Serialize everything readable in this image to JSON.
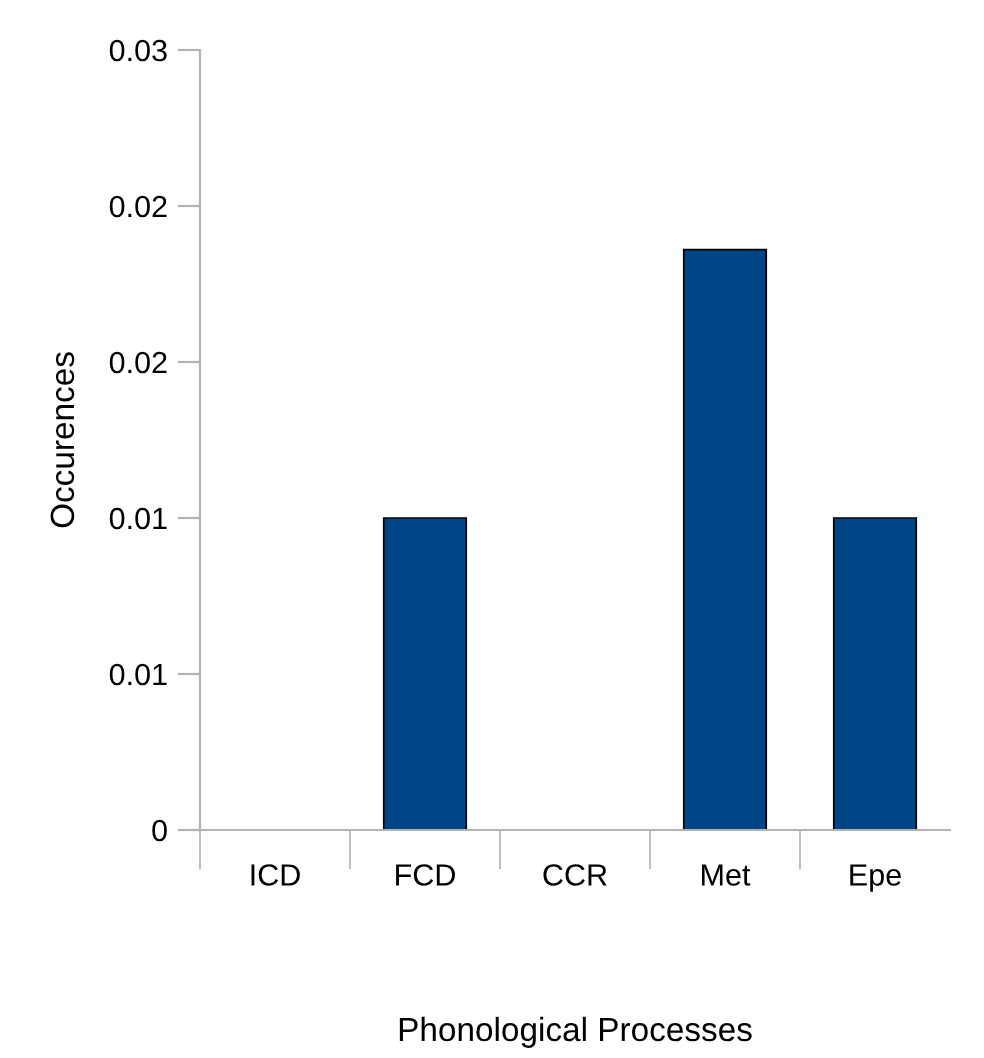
{
  "chart_data": {
    "type": "bar",
    "xlabel": "Phonological Processes",
    "ylabel": "Occurences",
    "categories": [
      "ICD",
      "FCD",
      "CCR",
      "Met",
      "Epe"
    ],
    "values": [
      0,
      0.01,
      0,
      0.0186,
      0.01
    ],
    "color": "#004586",
    "ylim": [
      0,
      0.025
    ],
    "yticks": [
      0,
      {
        "value": 0.005,
        "label": "0.01"
      },
      {
        "value": 0.01,
        "label": "0.01"
      },
      {
        "value": 0.015,
        "label": "0.02"
      },
      {
        "value": 0.02,
        "label": "0.02"
      },
      {
        "value": 0.025,
        "label": "0.03"
      }
    ],
    "grid": false
  }
}
